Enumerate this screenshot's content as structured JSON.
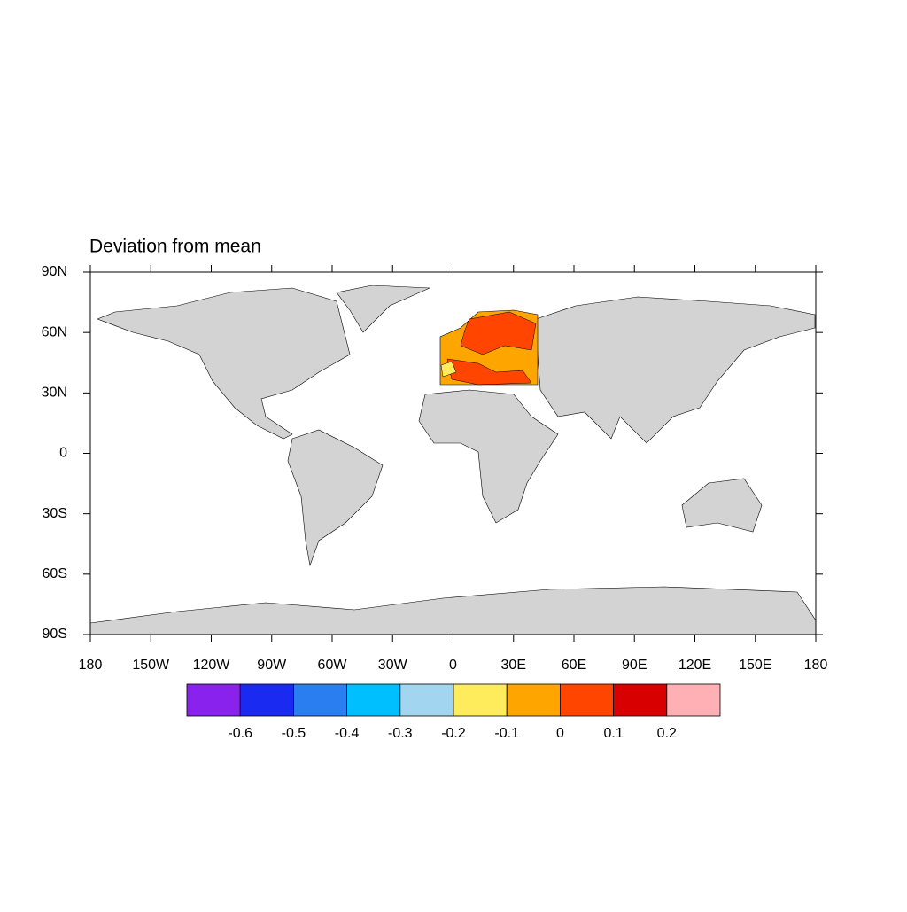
{
  "map": {
    "title": "Deviation from mean",
    "lon_ticks": [
      {
        "value": -180,
        "label": "180"
      },
      {
        "value": -150,
        "label": "150W"
      },
      {
        "value": -120,
        "label": "120W"
      },
      {
        "value": -90,
        "label": "90W"
      },
      {
        "value": -60,
        "label": "60W"
      },
      {
        "value": -30,
        "label": "30W"
      },
      0,
      {
        "value": 30,
        "label": "30E"
      },
      {
        "value": 60,
        "label": "60E"
      },
      {
        "value": 90,
        "label": "90E"
      },
      {
        "value": 120,
        "label": "120E"
      },
      {
        "value": 150,
        "label": "150E"
      },
      {
        "value": 180,
        "label": "180"
      }
    ],
    "lat_ticks": [
      {
        "value": 90,
        "label": "90N"
      },
      {
        "value": 60,
        "label": "60N"
      },
      {
        "value": 30,
        "label": "30N"
      },
      0,
      {
        "value": -30,
        "label": "30S"
      },
      {
        "value": -60,
        "label": "60S"
      },
      {
        "value": -90,
        "label": "90S"
      }
    ],
    "colorbar": {
      "colors": [
        "#8a22ee",
        "#1a2af0",
        "#2a7ef0",
        "#00bfff",
        "#a2d6f0",
        "#ffec5c",
        "#ffa500",
        "#ff4500",
        "#d80000",
        "#ffb0b4"
      ],
      "labels": [
        -0.6,
        -0.5,
        -0.4,
        -0.3,
        -0.2,
        -0.1,
        0,
        0.1,
        0.2
      ]
    }
  }
}
